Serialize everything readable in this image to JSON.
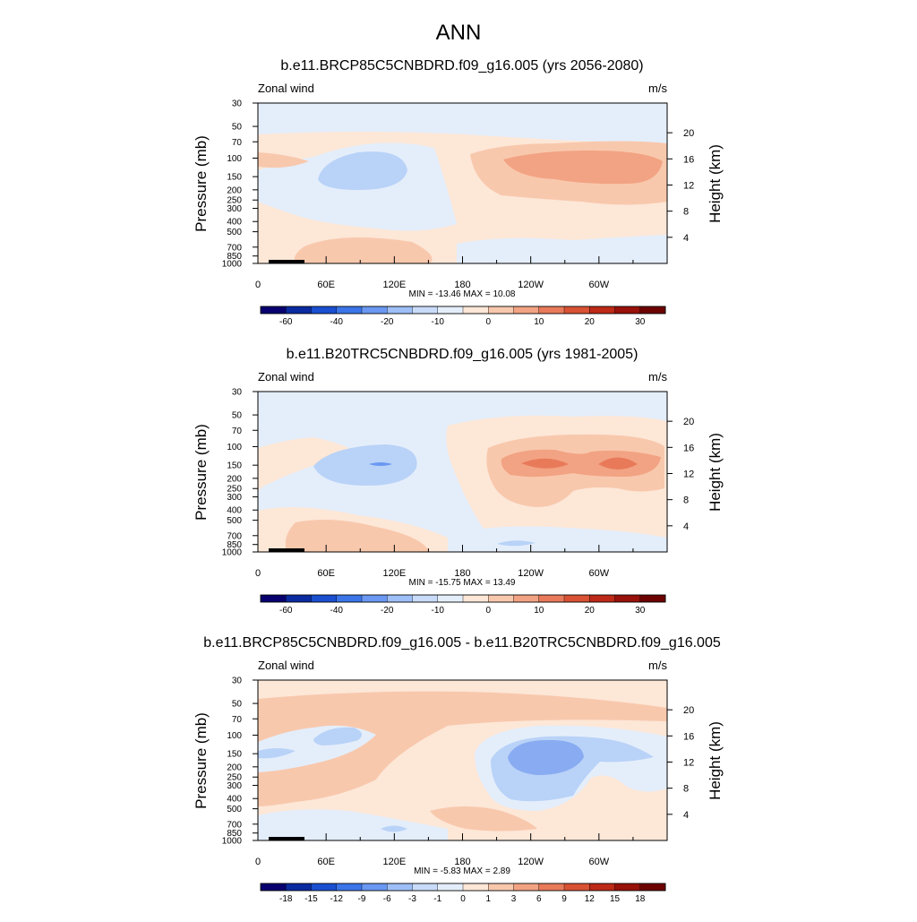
{
  "page_title": "ANN",
  "chart_data": [
    {
      "type": "contour",
      "title": "b.e11.BRCP85C5CNBDRD.f09_g16.005 (yrs 2056-2080)",
      "left_label": "Zonal wind",
      "right_label": "m/s",
      "ylabel": "Pressure (mb)",
      "y2label": "Height (km)",
      "x_ticks": [
        "0",
        "60E",
        "120E",
        "180",
        "120W",
        "60W"
      ],
      "y_ticks": [
        "30",
        "50",
        "70",
        "100",
        "150",
        "200",
        "250",
        "300",
        "400",
        "500",
        "700",
        "850",
        "1000"
      ],
      "y2_ticks": [
        "20",
        "16",
        "12",
        "8",
        "4"
      ],
      "stats": "MIN = -13.46  MAX =  10.08",
      "min": -13.46,
      "max": 10.08,
      "colorbar_labels": [
        "-60",
        "-40",
        "-20",
        "-10",
        "0",
        "10",
        "20",
        "30"
      ],
      "colorbar_colors": [
        "#08006f",
        "#0a2aa0",
        "#1a4fd0",
        "#3b75e8",
        "#6a98f2",
        "#9ebff7",
        "#c8dcf9",
        "#e4eefb",
        "#fde7d7",
        "#f8c8ad",
        "#f2a383",
        "#e87a5a",
        "#d85233",
        "#bd2a17",
        "#98110a",
        "#6c0302"
      ]
    },
    {
      "type": "contour",
      "title": "b.e11.B20TRC5CNBDRD.f09_g16.005 (yrs 1981-2005)",
      "left_label": "Zonal wind",
      "right_label": "m/s",
      "ylabel": "Pressure (mb)",
      "y2label": "Height (km)",
      "x_ticks": [
        "0",
        "60E",
        "120E",
        "180",
        "120W",
        "60W"
      ],
      "y_ticks": [
        "30",
        "50",
        "70",
        "100",
        "150",
        "200",
        "250",
        "300",
        "400",
        "500",
        "700",
        "850",
        "1000"
      ],
      "y2_ticks": [
        "20",
        "16",
        "12",
        "8",
        "4"
      ],
      "stats": "MIN = -15.75  MAX =  13.49",
      "min": -15.75,
      "max": 13.49,
      "colorbar_labels": [
        "-60",
        "-40",
        "-20",
        "-10",
        "0",
        "10",
        "20",
        "30"
      ],
      "colorbar_colors": [
        "#08006f",
        "#0a2aa0",
        "#1a4fd0",
        "#3b75e8",
        "#6a98f2",
        "#9ebff7",
        "#c8dcf9",
        "#e4eefb",
        "#fde7d7",
        "#f8c8ad",
        "#f2a383",
        "#e87a5a",
        "#d85233",
        "#bd2a17",
        "#98110a",
        "#6c0302"
      ]
    },
    {
      "type": "contour",
      "title": "b.e11.BRCP85C5CNBDRD.f09_g16.005 - b.e11.B20TRC5CNBDRD.f09_g16.005",
      "left_label": "Zonal wind",
      "right_label": "m/s",
      "ylabel": "Pressure (mb)",
      "y2label": "Height (km)",
      "x_ticks": [
        "0",
        "60E",
        "120E",
        "180",
        "120W",
        "60W"
      ],
      "y_ticks": [
        "30",
        "50",
        "70",
        "100",
        "150",
        "200",
        "250",
        "300",
        "400",
        "500",
        "700",
        "850",
        "1000"
      ],
      "y2_ticks": [
        "20",
        "16",
        "12",
        "8",
        "4"
      ],
      "stats": "MIN = -5.83  MAX =  2.89",
      "min": -5.83,
      "max": 2.89,
      "colorbar_labels": [
        "-18",
        "-15",
        "-12",
        "-9",
        "-6",
        "-3",
        "-1",
        "0",
        "1",
        "3",
        "6",
        "9",
        "12",
        "15",
        "18"
      ],
      "colorbar_colors": [
        "#08006f",
        "#0a2aa0",
        "#1a4fd0",
        "#3b75e8",
        "#6a98f2",
        "#9ebff7",
        "#c8dcf9",
        "#e4eefb",
        "#fde7d7",
        "#f8c8ad",
        "#f2a383",
        "#e87a5a",
        "#d85233",
        "#bd2a17",
        "#98110a",
        "#6c0302"
      ]
    }
  ]
}
